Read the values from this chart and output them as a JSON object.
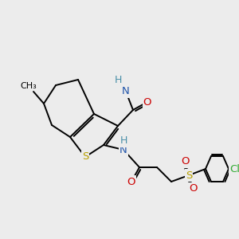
{
  "bg_color": "#ececec",
  "atom_colors": {
    "C": "#000000",
    "N": "#2255aa",
    "H": "#4a8fa8",
    "O": "#cc0000",
    "S": "#b8a000",
    "Cl": "#33aa33"
  },
  "lw": 1.4,
  "fs": 8.5,
  "figsize": [
    3.0,
    3.0
  ],
  "dpi": 100
}
